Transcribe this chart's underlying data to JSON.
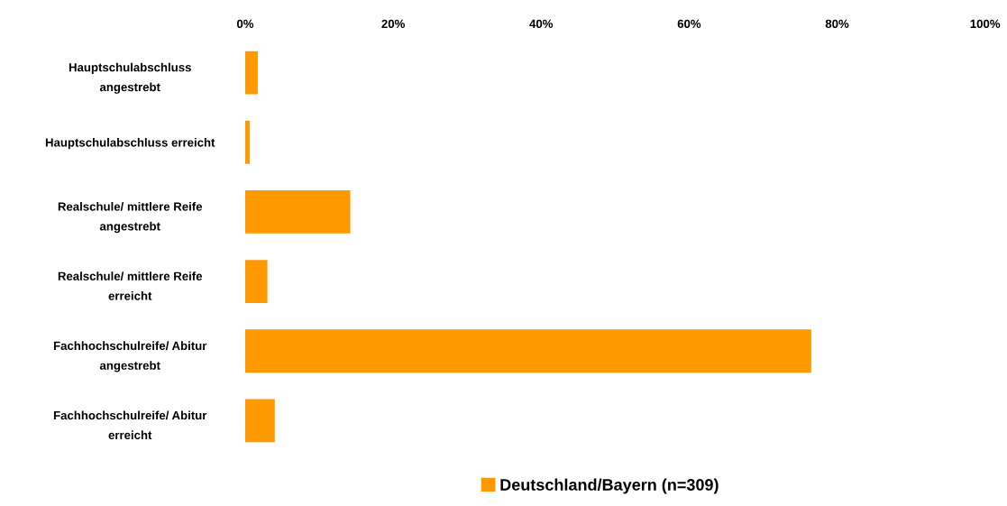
{
  "chart_data": {
    "type": "bar",
    "orientation": "horizontal",
    "categories": [
      "Hauptschulabschluss\nangestrebt",
      "Hauptschulabschluss erreicht",
      "Realschule/ mittlere Reife\nangestrebt",
      "Realschule/ mittlere Reife\nerreicht",
      "Fachhochschulreife/ Abitur\nangestrebt",
      "Fachhochschulreife/ Abitur\nerreicht"
    ],
    "series": [
      {
        "name": "Deutschland/Bayern (n=309)",
        "color": "#ff9900",
        "values": [
          1.7,
          0.6,
          14.2,
          3.0,
          76.5,
          4.0
        ]
      }
    ],
    "xlim": [
      0,
      100
    ],
    "xticks": [
      {
        "value": 0,
        "label": "0%"
      },
      {
        "value": 20,
        "label": "20%"
      },
      {
        "value": 40,
        "label": "40%"
      },
      {
        "value": 60,
        "label": "60%"
      },
      {
        "value": 80,
        "label": "80%"
      },
      {
        "value": 100,
        "label": "100%"
      }
    ],
    "grid": false,
    "legend": "bottom"
  }
}
